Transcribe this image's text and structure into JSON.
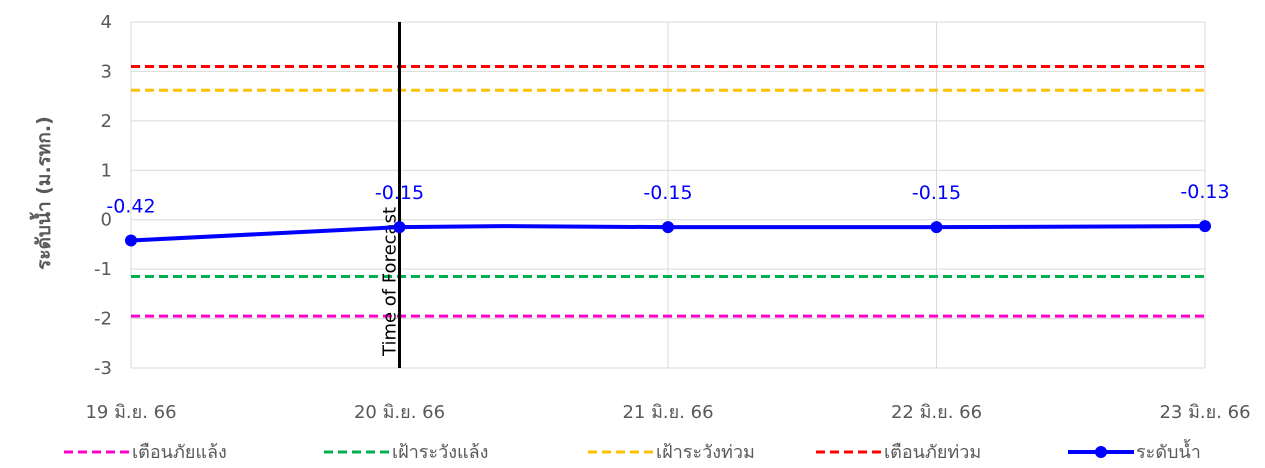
{
  "chart_data": {
    "type": "line",
    "ylabel": "ระดับน้ำ (ม.รทก.)",
    "ylim": [
      -3,
      4
    ],
    "yticks": [
      -3,
      -2,
      -1,
      0,
      1,
      2,
      3,
      4
    ],
    "x_ticks": [
      "19 มิ.ย. 66",
      "20 มิ.ย. 66",
      "21 มิ.ย. 66",
      "22 มิ.ย. 66",
      "23 มิ.ย. 66"
    ],
    "xlim": [
      0,
      4
    ],
    "grid": true,
    "legend_position": "bottom",
    "forecast_marker": {
      "x": 1,
      "label": "Time of Forecast"
    },
    "thresholds": [
      {
        "name": "เตือนภัยแล้ง",
        "value": -1.95,
        "color": "#ff00cc"
      },
      {
        "name": "เฝ้าระวังแล้ง",
        "value": -1.15,
        "color": "#00b050"
      },
      {
        "name": "เฝ้าระวังท่วม",
        "value": 2.62,
        "color": "#ffc000"
      },
      {
        "name": "เตือนภัยท่วม",
        "value": 3.1,
        "color": "#ff0000"
      }
    ],
    "series": [
      {
        "name": "ระดับน้ำ",
        "color": "#0000ff",
        "x": [
          0,
          1,
          1.38,
          2,
          3,
          4
        ],
        "y": [
          -0.42,
          -0.15,
          -0.13,
          -0.15,
          -0.15,
          -0.13
        ],
        "markers": [
          0,
          1,
          3,
          4,
          5
        ],
        "labeled": [
          0,
          1,
          3,
          4,
          5
        ],
        "data_labels": [
          "-0.42",
          "-0.15",
          "",
          "-0.15",
          "-0.15",
          "-0.13"
        ]
      }
    ]
  }
}
